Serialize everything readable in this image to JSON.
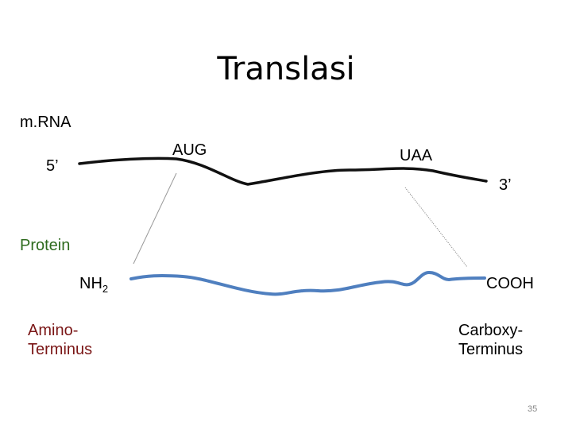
{
  "title": "Translasi",
  "mrna": {
    "label": "m.RNA",
    "five_prime": "5’",
    "start_codon": "AUG",
    "stop_codon": "UAA",
    "three_prime": "3’"
  },
  "protein": {
    "label": "Protein",
    "n_group": "NH",
    "n_group_subscript": "2",
    "c_group": "COOH",
    "amino_terminus": [
      "Amino-",
      "Terminus"
    ],
    "carboxy_terminus": [
      "Carboxy-",
      "Terminus"
    ]
  },
  "page_number": "35"
}
